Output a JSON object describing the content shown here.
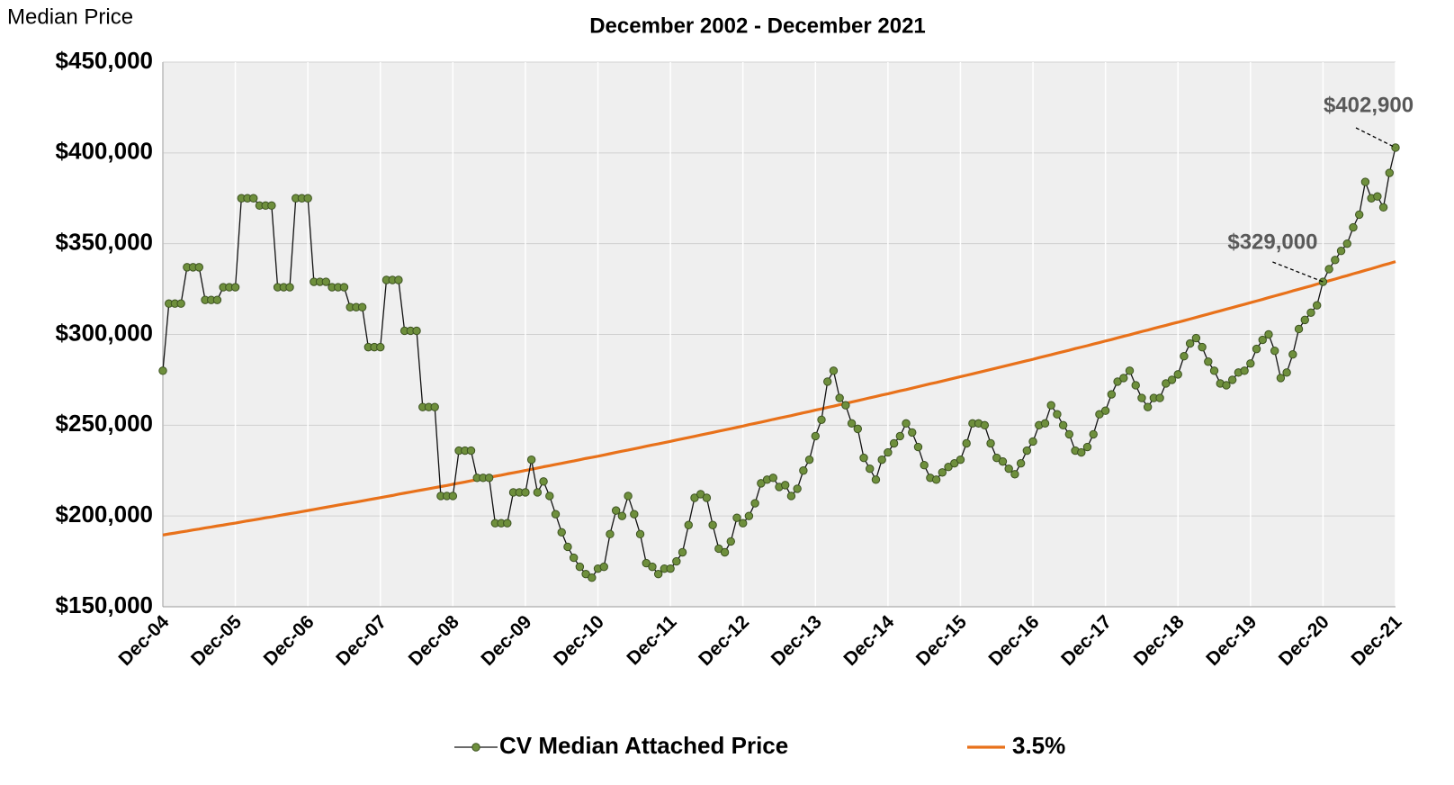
{
  "chart_data": {
    "type": "line",
    "title": "December 2002 - December 2021",
    "y_label": "Median Price",
    "ylim": [
      150000,
      450000
    ],
    "yticks": [
      {
        "value": 150000,
        "label": "$150,000"
      },
      {
        "value": 200000,
        "label": "$200,000"
      },
      {
        "value": 250000,
        "label": "$250,000"
      },
      {
        "value": 300000,
        "label": "$300,000"
      },
      {
        "value": 350000,
        "label": "$350,000"
      },
      {
        "value": 400000,
        "label": "$400,000"
      },
      {
        "value": 450000,
        "label": "$450,000"
      }
    ],
    "grid": true,
    "legend": "bottom",
    "categories": [
      "Dec-04",
      null,
      null,
      null,
      null,
      null,
      null,
      null,
      null,
      null,
      null,
      null,
      "Dec-05",
      null,
      null,
      null,
      null,
      null,
      null,
      null,
      null,
      null,
      null,
      null,
      "Dec-06",
      null,
      null,
      null,
      null,
      null,
      null,
      null,
      null,
      null,
      null,
      null,
      "Dec-07",
      null,
      null,
      null,
      null,
      null,
      null,
      null,
      null,
      null,
      null,
      null,
      "Dec-08",
      null,
      null,
      null,
      null,
      null,
      null,
      null,
      null,
      null,
      null,
      null,
      "Dec-09",
      null,
      null,
      null,
      null,
      null,
      null,
      null,
      null,
      null,
      null,
      null,
      "Dec-10",
      null,
      null,
      null,
      null,
      null,
      null,
      null,
      null,
      null,
      null,
      null,
      "Dec-11",
      null,
      null,
      null,
      null,
      null,
      null,
      null,
      null,
      null,
      null,
      null,
      "Dec-12",
      null,
      null,
      null,
      null,
      null,
      null,
      null,
      null,
      null,
      null,
      null,
      "Dec-13",
      null,
      null,
      null,
      null,
      null,
      null,
      null,
      null,
      null,
      null,
      null,
      "Dec-14",
      null,
      null,
      null,
      null,
      null,
      null,
      null,
      null,
      null,
      null,
      null,
      "Dec-15",
      null,
      null,
      null,
      null,
      null,
      null,
      null,
      null,
      null,
      null,
      null,
      "Dec-16",
      null,
      null,
      null,
      null,
      null,
      null,
      null,
      null,
      null,
      null,
      null,
      "Dec-17",
      null,
      null,
      null,
      null,
      null,
      null,
      null,
      null,
      null,
      null,
      null,
      "Dec-18",
      null,
      null,
      null,
      null,
      null,
      null,
      null,
      null,
      null,
      null,
      null,
      "Dec-19",
      null,
      null,
      null,
      null,
      null,
      null,
      null,
      null,
      null,
      null,
      null,
      "Dec-20",
      null,
      null,
      null,
      null,
      null,
      null,
      null,
      null,
      null,
      null,
      null,
      "Dec-21"
    ],
    "series": [
      {
        "name": "CV Median Attached Price",
        "color": "#6e8f3c",
        "line_color": "#111111",
        "markers": true,
        "values": [
          280000,
          317000,
          317000,
          317000,
          337000,
          337000,
          337000,
          319000,
          319000,
          319000,
          326000,
          326000,
          326000,
          375000,
          375000,
          375000,
          371000,
          371000,
          371000,
          326000,
          326000,
          326000,
          375000,
          375000,
          375000,
          329000,
          329000,
          329000,
          326000,
          326000,
          326000,
          315000,
          315000,
          315000,
          293000,
          293000,
          293000,
          330000,
          330000,
          330000,
          302000,
          302000,
          302000,
          260000,
          260000,
          260000,
          211000,
          211000,
          211000,
          236000,
          236000,
          236000,
          221000,
          221000,
          221000,
          196000,
          196000,
          196000,
          213000,
          213000,
          213000,
          231000,
          213000,
          219000,
          211000,
          201000,
          191000,
          183000,
          177000,
          172000,
          168000,
          166000,
          171000,
          172000,
          190000,
          203000,
          200000,
          211000,
          201000,
          190000,
          174000,
          172000,
          168000,
          171000,
          171000,
          175000,
          180000,
          195000,
          210000,
          212000,
          210000,
          195000,
          182000,
          180000,
          186000,
          199000,
          196000,
          200000,
          207000,
          218000,
          220000,
          221000,
          216000,
          217000,
          211000,
          215000,
          225000,
          231000,
          244000,
          253000,
          274000,
          280000,
          265000,
          261000,
          251000,
          248000,
          232000,
          226000,
          220000,
          231000,
          235000,
          240000,
          244000,
          251000,
          246000,
          238000,
          228000,
          221000,
          220000,
          224000,
          227000,
          229000,
          231000,
          240000,
          251000,
          251000,
          250000,
          240000,
          232000,
          230000,
          226000,
          223000,
          229000,
          236000,
          241000,
          250000,
          251000,
          261000,
          256000,
          250000,
          245000,
          236000,
          235000,
          238000,
          245000,
          256000,
          258000,
          267000,
          274000,
          276000,
          280000,
          272000,
          265000,
          260000,
          265000,
          265000,
          273000,
          275000,
          278000,
          288000,
          295000,
          298000,
          293000,
          285000,
          280000,
          273000,
          272000,
          275000,
          279000,
          280000,
          284000,
          292000,
          297000,
          300000,
          291000,
          276000,
          279000,
          289000,
          303000,
          308000,
          312000,
          316000,
          329000,
          336000,
          341000,
          346000,
          350000,
          359000,
          366000,
          384000,
          375000,
          376000,
          370000,
          389000,
          402900
        ],
        "value_labels": [
          null,
          null,
          null,
          null,
          null,
          null,
          null,
          null,
          null,
          null,
          null,
          null,
          null,
          null,
          null,
          null,
          null,
          null,
          null,
          null,
          null,
          null,
          null,
          null,
          null,
          null,
          null,
          null,
          null,
          null,
          null,
          null,
          null,
          null,
          null,
          null,
          null,
          null,
          null,
          null,
          null,
          null,
          null,
          null,
          null,
          null,
          null,
          null,
          null,
          null,
          null,
          null,
          null,
          null,
          null,
          null,
          null,
          null,
          null,
          null,
          null,
          null,
          null,
          null,
          null,
          null,
          null,
          null,
          null,
          null,
          null,
          null,
          null,
          null,
          null,
          null,
          null,
          null,
          null,
          null,
          null,
          null,
          null,
          null,
          null,
          null,
          null,
          null,
          null,
          null,
          null,
          null,
          null,
          null,
          null,
          null,
          null,
          null,
          null,
          null,
          null,
          null,
          null,
          null,
          null,
          null,
          null,
          null,
          null,
          null,
          null,
          null,
          null,
          null,
          null,
          null,
          null,
          null,
          null,
          null,
          null,
          null,
          null,
          null,
          null,
          null,
          null,
          null,
          null,
          null,
          null,
          null,
          null,
          null,
          null,
          null,
          null,
          null,
          null,
          null,
          null,
          null,
          null,
          null,
          null,
          null,
          null,
          null,
          null,
          null,
          null,
          null,
          null,
          null,
          null,
          null,
          null,
          null,
          null,
          null,
          null,
          null,
          null,
          null,
          null,
          null,
          null,
          null,
          null,
          null,
          null,
          null,
          null,
          null,
          null,
          null,
          null,
          null,
          null,
          null,
          null,
          null,
          null,
          null,
          null,
          null,
          null,
          null,
          null,
          null,
          null,
          null,
          "$329,000",
          null,
          null,
          null,
          null,
          null,
          null,
          null,
          null,
          null,
          null,
          null,
          "$402,900"
        ]
      },
      {
        "name": "3.5%",
        "color": "#e8711a",
        "markers": false,
        "values": [
          189500,
          190100,
          190600,
          191200,
          191700,
          192300,
          192800,
          193400,
          193900,
          194500,
          195000,
          195600,
          196100,
          196700,
          197300,
          197800,
          198400,
          199000,
          199500,
          200100,
          200700,
          201300,
          201800,
          202400,
          203000,
          203600,
          204200,
          204800,
          205400,
          206000,
          206600,
          207100,
          207700,
          208300,
          208900,
          209500,
          210100,
          210700,
          211300,
          212000,
          212600,
          213200,
          213800,
          214400,
          215000,
          215600,
          216200,
          216800,
          217500,
          218100,
          218700,
          219400,
          220000,
          220600,
          221300,
          221900,
          222500,
          223200,
          223800,
          224400,
          225100,
          225700,
          226400,
          227100,
          227700,
          228400,
          229000,
          229700,
          230300,
          231000,
          231700,
          232300,
          232900,
          233600,
          234300,
          235000,
          235700,
          236300,
          237000,
          237700,
          238400,
          239100,
          239700,
          240400,
          241100,
          241800,
          242500,
          243200,
          243900,
          244600,
          245300,
          246000,
          246700,
          247400,
          248100,
          248800,
          249500,
          250300,
          251000,
          251700,
          252400,
          253200,
          253900,
          254600,
          255300,
          256100,
          256800,
          257500,
          258300,
          259000,
          259800,
          260500,
          261300,
          262000,
          262800,
          263500,
          264300,
          265100,
          265800,
          266600,
          267300,
          268100,
          268900,
          269600,
          270400,
          271200,
          272000,
          272800,
          273500,
          274300,
          275100,
          275900,
          276700,
          277500,
          278300,
          279100,
          279900,
          280700,
          281500,
          282300,
          283100,
          283900,
          284700,
          285500,
          286300,
          287200,
          288000,
          288800,
          289700,
          290500,
          291300,
          292200,
          293000,
          293800,
          294700,
          295500,
          296400,
          297200,
          298100,
          299000,
          299800,
          300700,
          301600,
          302400,
          303300,
          304200,
          305000,
          305900,
          306700,
          307600,
          308500,
          309400,
          310300,
          311200,
          312100,
          313000,
          313900,
          314800,
          315700,
          316600,
          317500,
          318400,
          319300,
          320300,
          321200,
          322100,
          323000,
          324000,
          324900,
          325800,
          326700,
          327700,
          328600,
          329600,
          330500,
          331500,
          332400,
          333400,
          334300,
          335300,
          336200,
          337200,
          338200,
          339100,
          340100
        ]
      }
    ]
  }
}
